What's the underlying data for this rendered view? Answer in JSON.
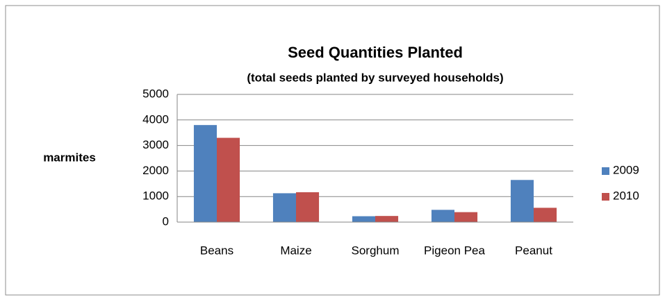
{
  "chart_data": {
    "type": "bar",
    "title": "Seed Quantities Planted",
    "subtitle": "(total seeds planted by surveyed households)",
    "y_label": "marmites",
    "categories": [
      "Beans",
      "Maize",
      "Sorghum",
      "Pigeon Pea",
      "Peanut"
    ],
    "series": [
      {
        "name": "2009",
        "color": "#4f81bd",
        "values": [
          3800,
          1130,
          230,
          480,
          1650
        ]
      },
      {
        "name": "2010",
        "color": "#c0504d",
        "values": [
          3300,
          1170,
          240,
          390,
          560
        ]
      }
    ],
    "ylim": [
      0,
      5000
    ],
    "yticks": [
      0,
      1000,
      2000,
      3000,
      4000,
      5000
    ],
    "grid": true,
    "legend": "right"
  }
}
